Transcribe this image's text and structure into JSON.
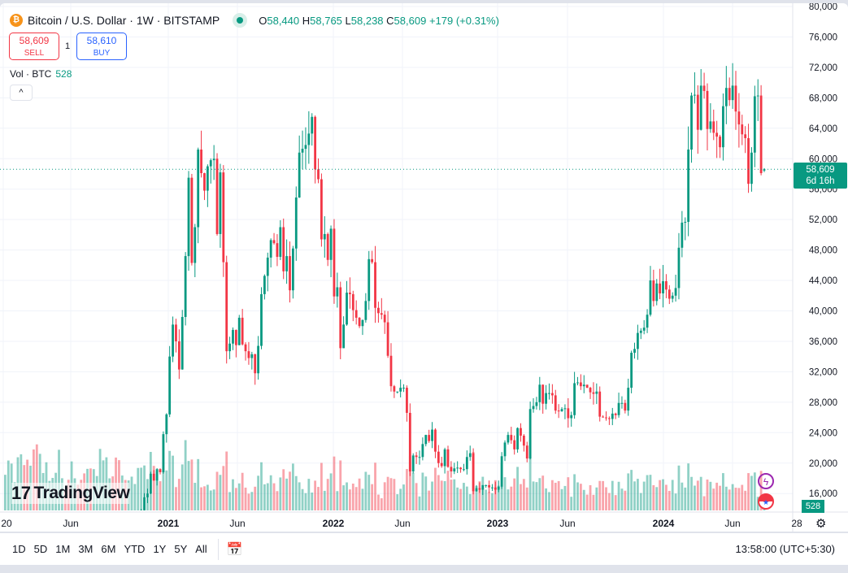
{
  "header": {
    "symbol_title": "Bitcoin / U.S. Dollar · 1W · BITSTAMP",
    "open_label": "O",
    "open": "58,440",
    "high_label": "H",
    "high": "58,765",
    "low_label": "L",
    "low": "58,238",
    "close_label": "C",
    "close": "58,609",
    "change": "+179 (+0.31%)"
  },
  "trade": {
    "sell_price": "58,609",
    "sell_label": "SELL",
    "spread": "1",
    "buy_price": "58,610",
    "buy_label": "BUY"
  },
  "volume_legend": {
    "label": "Vol · BTC",
    "value": "528"
  },
  "collapse_icon": "chevron-up-icon",
  "collapse_glyph": "^",
  "logo": "TradingView",
  "price_marker": {
    "price": "58,609",
    "countdown": "6d 16h"
  },
  "volume_marker": "528",
  "toolbar": {
    "ranges": [
      "1D",
      "5D",
      "1M",
      "3M",
      "6M",
      "YTD",
      "1Y",
      "5Y",
      "All"
    ],
    "time": "13:58:00 (UTC+5:30)"
  },
  "colors": {
    "up": "#089981",
    "down": "#f23645"
  },
  "chart_data": {
    "type": "candlestick",
    "title": "Bitcoin / U.S. Dollar · 1W · BITSTAMP",
    "interval": "1W",
    "y_ticks": [
      "80,000",
      "76,000",
      "72,000",
      "68,000",
      "64,000",
      "60,000",
      "56,000",
      "52,000",
      "48,000",
      "44,000",
      "40,000",
      "36,000",
      "32,000",
      "28,000",
      "24,000",
      "20,000",
      "16,000"
    ],
    "ylim": [
      16000,
      80000
    ],
    "x_ticks": [
      "20",
      "Jun",
      "2021",
      "Jun",
      "2022",
      "Jun",
      "2023",
      "Jun",
      "2024",
      "Jun",
      "28"
    ],
    "weekly_close_k": [
      8.0,
      8.2,
      8.9,
      9.3,
      9.8,
      10.3,
      9.7,
      8.8,
      9.1,
      7.9,
      5.8,
      6.2,
      6.4,
      6.8,
      6.9,
      7.1,
      7.5,
      8.8,
      9.6,
      9.4,
      9.2,
      9.5,
      9.7,
      9.4,
      9.3,
      9.1,
      9.3,
      9.2,
      9.2,
      9.7,
      11.1,
      11.6,
      11.8,
      11.9,
      11.6,
      10.5,
      10.3,
      10.9,
      10.7,
      10.9,
      11.3,
      11.5,
      13.0,
      13.8,
      15.5,
      16.0,
      18.6,
      17.7,
      19.2,
      18.8,
      23.8,
      26.4,
      34.0,
      38.2,
      36.0,
      32.3,
      39.2,
      47.2,
      57.5,
      46.3,
      51.0,
      61.2,
      58.1,
      55.8,
      59.0,
      59.8,
      60.0,
      50.1,
      58.2,
      46.4,
      34.7,
      35.7,
      37.5,
      35.5,
      39.1,
      35.6,
      34.7,
      33.8,
      34.3,
      31.8,
      35.4,
      42.2,
      44.6,
      47.0,
      49.3,
      48.9,
      47.1,
      51.0,
      45.2,
      47.2,
      42.7,
      48.2,
      54.9,
      60.8,
      61.3,
      61.8,
      63.3,
      65.5,
      58.6,
      57.3,
      49.4,
      50.1,
      46.7,
      50.8,
      41.9,
      43.1,
      35.1,
      38.2,
      42.4,
      42.2,
      40.1,
      39.1,
      38.0,
      38.8,
      41.3,
      46.8,
      46.4,
      40.4,
      39.7,
      39.5,
      38.5,
      34.1,
      30.1,
      29.4,
      29.4,
      29.9,
      29.9,
      26.6,
      18.9,
      21.0,
      20.8,
      20.8,
      22.5,
      23.7,
      22.9,
      24.4,
      21.5,
      20.0,
      19.6,
      21.8,
      19.5,
      18.9,
      19.3,
      19.4,
      19.2,
      19.2,
      20.8,
      21.3,
      16.3,
      16.7,
      16.5,
      17.1,
      17.1,
      16.8,
      16.8,
      16.5,
      16.9,
      20.9,
      22.7,
      23.7,
      23.0,
      21.8,
      24.6,
      23.6,
      22.3,
      20.6,
      27.1,
      27.5,
      28.0,
      30.3,
      27.8,
      29.2,
      29.2,
      28.9,
      26.9,
      26.8,
      27.1,
      27.2,
      25.9,
      26.3,
      30.5,
      30.6,
      30.1,
      30.3,
      29.9,
      29.3,
      29.1,
      29.4,
      26.1,
      26.0,
      25.9,
      25.8,
      26.5,
      26.3,
      27.9,
      27.9,
      26.9,
      29.9,
      34.5,
      35.0,
      37.1,
      37.4,
      37.8,
      39.5,
      44.0,
      41.3,
      43.6,
      42.3,
      43.9,
      42.8,
      41.6,
      42.0,
      43.0,
      48.3,
      51.6,
      51.7,
      61.2,
      68.3,
      68.4,
      63.8,
      69.6,
      68.9,
      63.9,
      64.9,
      63.4,
      62.9,
      61.5,
      66.9,
      69.3,
      67.7,
      69.6,
      66.2,
      64.5,
      63.2,
      62.7,
      56.7,
      60.8,
      68.2,
      68.3,
      58.1,
      58.44
    ],
    "last_candle": {
      "open": 58440,
      "high": 58765,
      "low": 58238,
      "close": 58609
    },
    "last_volume": 528
  }
}
